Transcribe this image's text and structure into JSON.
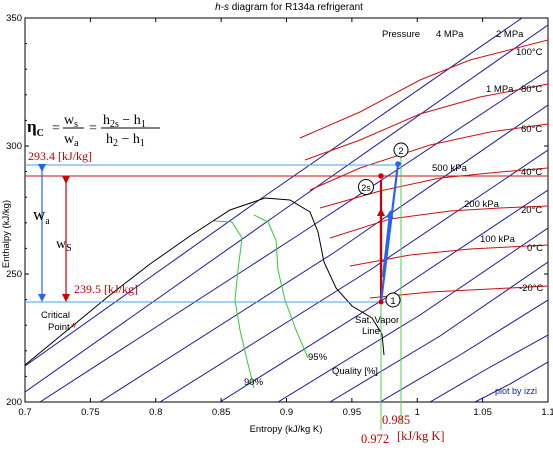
{
  "title": "h-s diagram for R134a refrigerant",
  "title_italic_part": "h-s",
  "title_rest": " diagram for R134a refrigerant",
  "x_axis": {
    "label": "Entropy (kJ/kg K)",
    "ticks": [
      "0.7",
      "0.75",
      "0.8",
      "0.85",
      "0.9",
      "0.95",
      "1",
      "1.05",
      "1.1"
    ]
  },
  "y_axis": {
    "label": "Enthalpy (kJ/kg)",
    "ticks": [
      "200",
      "250",
      "300",
      "350"
    ]
  },
  "pressure_header": "Pressure",
  "pressure_labels": [
    "4 MPa",
    "2 MPa",
    "1 MPa",
    "500 kPa",
    "200 kPa",
    "100 kPa"
  ],
  "temperature_labels": [
    "100°C",
    "80°C",
    "60°C",
    "40°C",
    "20°C",
    "0°C",
    "-20°C"
  ],
  "quality_labels": [
    "90%",
    "95%"
  ],
  "quality_axis_label": "Quality [%]",
  "sat_vapor_label_1": "Sat. Vapor",
  "sat_vapor_label_2": "Line",
  "critical_label_1": "Critical",
  "critical_label_2": "Point",
  "critical_marker": "*",
  "plot_by": "plot by izzi",
  "equation": {
    "eta": "η",
    "eta_sub": "C",
    "lhs_num": "w",
    "lhs_num_sub": "s",
    "lhs_den": "w",
    "lhs_den_sub": "a",
    "rhs_num": "h",
    "rhs_num_sub": "2s",
    "rhs_num_minus": " − h",
    "rhs_num_sub2": "1",
    "rhs_den": "h",
    "rhs_den_sub": "2",
    "rhs_den_minus": " − h",
    "rhs_den_sub2": "1",
    "equals": "="
  },
  "h2_label": "293.4 [kJ/kg]",
  "h1_label": "239.5 [kJ/kg]",
  "wa": "w",
  "wa_sub": "a",
  "ws": "w",
  "ws_sub": "S",
  "state_points": [
    "1",
    "2",
    "2s"
  ],
  "s_readout_1": "0.972",
  "s_readout_2": "0.985",
  "s_units": "[kJ/kg K]",
  "process": {
    "s1": 0.972,
    "h1": 239.5,
    "s2": 0.985,
    "h2": 293.4,
    "s2s": 0.972,
    "h2s": 288.0
  },
  "colors": {
    "isobar": "#1a1a9a",
    "isotherm": "#cc1111",
    "quality": "#33cc33",
    "sat_vapor": "#000000",
    "process_red": "#cc0000",
    "process_blue": "#2266ee",
    "guide_blue": "#4aa0ee",
    "guide_green": "#55cc55",
    "red_text": "#c00000"
  }
}
